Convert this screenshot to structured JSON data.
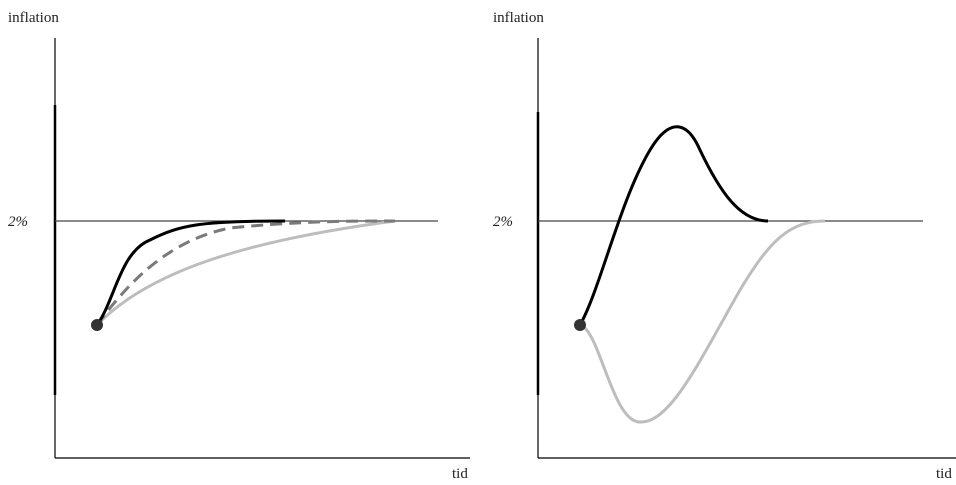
{
  "panels": [
    {
      "y_label": "inflation",
      "level_label": "2%",
      "x_label": "tid"
    },
    {
      "y_label": "inflation",
      "level_label": "2%",
      "x_label": "tid"
    }
  ]
}
